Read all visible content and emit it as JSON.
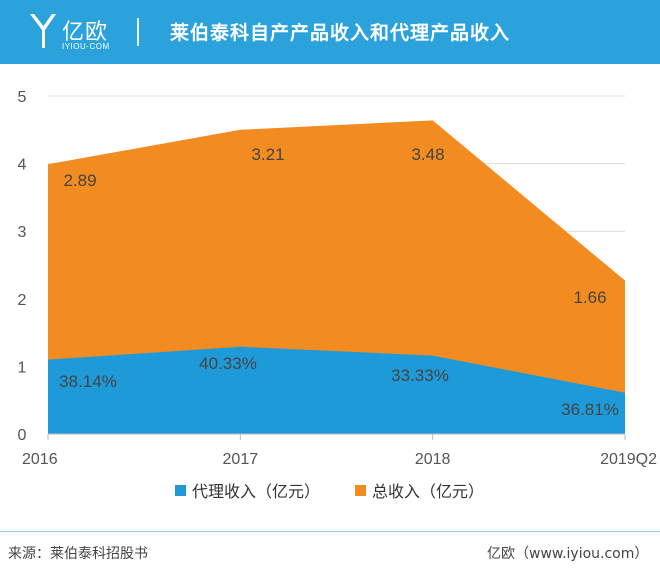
{
  "header": {
    "logo_text": "亿欧",
    "logo_sub": "IYIOU·COM",
    "title": "莱伯泰科自产产品收入和代理产品收入"
  },
  "colors": {
    "header_bg": "#2ba2dc",
    "agency": "#1f9ad8",
    "total": "#f28b20"
  },
  "chart_data": {
    "type": "area",
    "categories": [
      "2016",
      "2017",
      "2018",
      "2019Q2"
    ],
    "series": [
      {
        "name": "代理收入（亿元）",
        "values": [
          1.1,
          1.29,
          1.16,
          0.61
        ],
        "color": "#1f9ad8"
      },
      {
        "name": "总收入（亿元）",
        "values": [
          3.99,
          4.5,
          4.64,
          2.27
        ],
        "color": "#f28b20"
      }
    ],
    "data_labels": {
      "total": [
        "2.89",
        "3.21",
        "3.48",
        "1.66"
      ],
      "agency_share": [
        "38.14%",
        "40.33%",
        "33.33%",
        "36.81%"
      ]
    },
    "ylim": [
      0,
      5
    ],
    "yticks": [
      "0",
      "1",
      "2",
      "3",
      "4",
      "5"
    ],
    "grid": true,
    "legend": "bottom"
  },
  "legend": {
    "agency": "代理收入（亿元）",
    "total": "总收入（亿元）"
  },
  "footer": {
    "source": "来源：莱伯泰科招股书",
    "credit": "亿欧（www.iyiou.com）"
  }
}
